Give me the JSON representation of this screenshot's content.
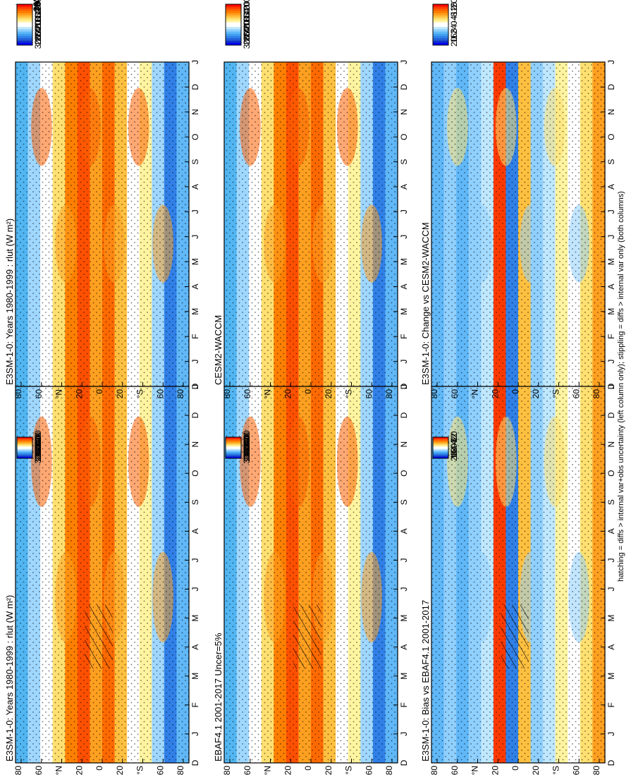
{
  "figure": {
    "footnote": "hatching = diffs > internal var+obs uncertainty (left column only); stippling = diffs > internal var only (both columns)",
    "colors": {
      "abs_scale": [
        "#ff0000",
        "#ff3a00",
        "#ff6000",
        "#ff8000",
        "#ffa020",
        "#ffc040",
        "#ffe070",
        "#fff4a0",
        "#ffffff",
        "#ffffff",
        "#bfe8ff",
        "#90d0ff",
        "#60b8f8",
        "#40a0f0",
        "#3080e8",
        "#2060d8",
        "#1030c8",
        "#0000ff"
      ],
      "diff_scale": [
        "#ff0000",
        "#ff3a00",
        "#ff6000",
        "#ff8000",
        "#ffa020",
        "#ffc040",
        "#ffe070",
        "#fff4a0",
        "#ffffff",
        "#ffffff",
        "#bfe8ff",
        "#90d0ff",
        "#60b8f8",
        "#40a0f0",
        "#3080e8",
        "#2060d8",
        "#1030c8",
        "#0000ff"
      ]
    }
  },
  "chart_data": [
    {
      "type": "heatmap",
      "title": "E3SM-1-0: Years 1980-1999 : rlut (W m²)",
      "x_ticks": [
        "D",
        "J",
        "F",
        "M",
        "A",
        "M",
        "J",
        "J",
        "A",
        "S",
        "O",
        "N",
        "D",
        "J"
      ],
      "y_ticks": [
        "80",
        "60",
        "°N",
        "20",
        "0",
        "20",
        "°S",
        "60",
        "80"
      ],
      "colorbar": {
        "levels": [
          "300",
          "280",
          "260",
          "240",
          "220",
          "200",
          "180",
          "160",
          "140",
          "120",
          "100"
        ]
      },
      "hatching": true,
      "stippling": true
    },
    {
      "type": "heatmap",
      "title": "E3SM-1-0: Years 1980-1999 : rlut (W m²)",
      "x_ticks": [
        "D",
        "J",
        "F",
        "M",
        "A",
        "M",
        "J",
        "J",
        "A",
        "S",
        "O",
        "N",
        "D",
        "J"
      ],
      "y_ticks": [
        "80",
        "60",
        "°N",
        "20",
        "0",
        "20",
        "°S",
        "60",
        "80"
      ],
      "colorbar": {
        "levels": [
          "300",
          "280",
          "260",
          "240",
          "220",
          "200",
          "180",
          "160",
          "140",
          "120",
          "100"
        ]
      },
      "hatching": false,
      "stippling": true
    },
    {
      "type": "heatmap",
      "title": "EBAF4.1 2001-2017 Uncer=5%",
      "x_ticks": [
        "D",
        "J",
        "F",
        "M",
        "A",
        "M",
        "J",
        "J",
        "A",
        "S",
        "O",
        "N",
        "D",
        "J"
      ],
      "y_ticks": [
        "80",
        "60",
        "°N",
        "20",
        "0",
        "20",
        "°S",
        "60",
        "80"
      ],
      "colorbar": {
        "levels": [
          "300",
          "280",
          "260",
          "240",
          "220",
          "200",
          "180",
          "160",
          "140",
          "120",
          "100"
        ]
      },
      "hatching": true,
      "stippling": true
    },
    {
      "type": "heatmap",
      "title": "CESM2-WACCM",
      "x_ticks": [
        "D",
        "J",
        "F",
        "M",
        "A",
        "M",
        "J",
        "J",
        "A",
        "S",
        "O",
        "N",
        "D",
        "J"
      ],
      "y_ticks": [
        "80",
        "60",
        "°N",
        "20",
        "0",
        "20",
        "°S",
        "60",
        "80"
      ],
      "colorbar": {
        "levels": [
          "300",
          "280",
          "260",
          "240",
          "220",
          "200",
          "180",
          "160",
          "140",
          "120",
          "100"
        ]
      },
      "hatching": false,
      "stippling": true
    },
    {
      "type": "heatmap",
      "title": "E3SM-1-0: Bias vs EBAF4.1 2001-2017",
      "x_ticks": [
        "D",
        "J",
        "F",
        "M",
        "A",
        "M",
        "J",
        "J",
        "A",
        "S",
        "O",
        "N",
        "D",
        "J"
      ],
      "y_ticks": [
        "80",
        "60",
        "°N",
        "20",
        "0",
        "20",
        "°S",
        "60",
        "80"
      ],
      "colorbar": {
        "levels": [
          "20",
          "16",
          "12",
          "8",
          "4",
          "0",
          "-4",
          "-8",
          "-12",
          "-20"
        ]
      },
      "hatching": true,
      "stippling": true
    },
    {
      "type": "heatmap",
      "title": "E3SM-1-0: Change vs CESM2-WACCM",
      "x_ticks": [
        "D",
        "J",
        "F",
        "M",
        "A",
        "M",
        "J",
        "J",
        "A",
        "S",
        "O",
        "N",
        "D",
        "J"
      ],
      "y_ticks": [
        "80",
        "60",
        "°N",
        "20",
        "0",
        "20",
        "°S",
        "60",
        "80"
      ],
      "colorbar": {
        "levels": [
          "20",
          "16",
          "12",
          "8",
          "4",
          "0",
          "-4",
          "-8",
          "-12",
          "-16",
          "-20"
        ]
      },
      "hatching": false,
      "stippling": true
    }
  ]
}
